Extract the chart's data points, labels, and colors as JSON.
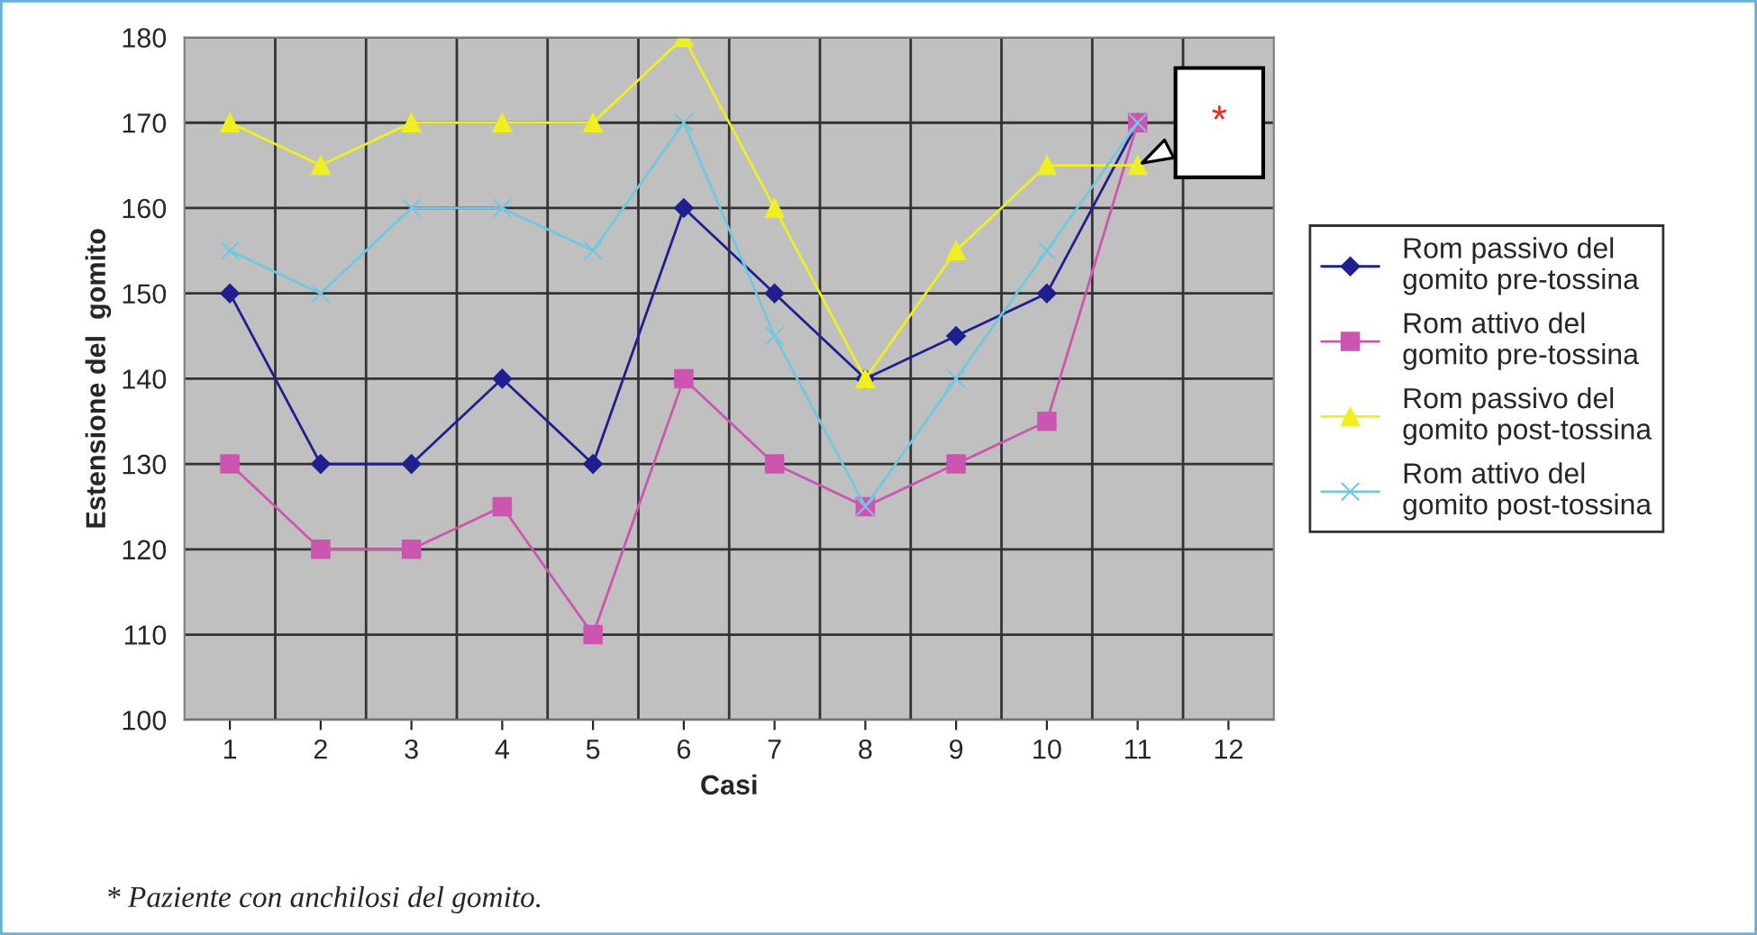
{
  "chart_data": {
    "type": "line",
    "xlabel": "Casi",
    "ylabel": "Estensione del  gomito",
    "categories": [
      "1",
      "2",
      "3",
      "4",
      "5",
      "6",
      "7",
      "8",
      "9",
      "10",
      "11",
      "12"
    ],
    "series": [
      {
        "name": "Rom passivo del gomito pre-tossina",
        "color": "#1f1f8f",
        "marker": "diamond",
        "values": [
          150,
          130,
          130,
          140,
          130,
          160,
          150,
          140,
          145,
          150,
          170,
          null
        ]
      },
      {
        "name": "Rom attivo del gomito pre-tossina",
        "color": "#cc55b0",
        "marker": "square",
        "values": [
          130,
          120,
          120,
          125,
          110,
          140,
          130,
          125,
          130,
          135,
          170,
          null
        ]
      },
      {
        "name": "Rom passivo del gomito post-tossina",
        "color": "#f0f020",
        "marker": "triangle",
        "values": [
          170,
          165,
          170,
          170,
          170,
          180,
          160,
          140,
          155,
          165,
          165,
          null
        ]
      },
      {
        "name": "Rom attivo del gomito post-tossina",
        "color": "#70c8e0",
        "marker": "cross",
        "values": [
          155,
          150,
          160,
          160,
          155,
          170,
          145,
          125,
          140,
          155,
          170,
          null
        ]
      }
    ],
    "ylim": [
      100,
      180
    ],
    "yticks": [
      100,
      110,
      120,
      130,
      140,
      150,
      160,
      170,
      180
    ],
    "grid": true,
    "legend": "right",
    "annotations": [
      {
        "text": "*",
        "x": "11",
        "y": 165
      },
      "* Paziente con anchilosi del gomito."
    ]
  }
}
